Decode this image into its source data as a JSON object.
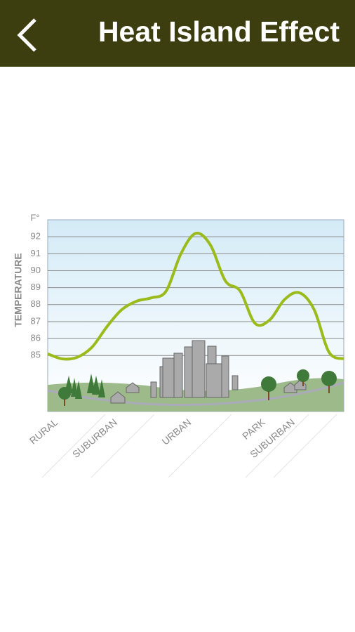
{
  "header": {
    "title": "Heat Island Effect"
  },
  "chart_data": {
    "type": "line",
    "ylabel": "TEMPERATURE",
    "yunit": "F°",
    "categories": [
      null,
      "RURAL",
      null,
      null,
      null,
      "SUBURBAN",
      null,
      null,
      null,
      null,
      "URBAN",
      null,
      null,
      null,
      null,
      "PARK",
      null,
      "SUBURBAN",
      null,
      null,
      null
    ],
    "series": [
      {
        "name": "Temperature",
        "color": "#9bbb1c",
        "values": [
          85.1,
          84.8,
          84.9,
          85.5,
          86.7,
          87.7,
          88.2,
          88.4,
          88.8,
          91.0,
          92.2,
          91.5,
          89.4,
          88.8,
          86.9,
          87.1,
          88.3,
          88.7,
          87.7,
          85.2,
          84.8
        ]
      }
    ],
    "ylim": [
      81.7,
      93
    ],
    "yticks": [
      85,
      86,
      87,
      88,
      89,
      90,
      91,
      92
    ],
    "grid": true
  }
}
